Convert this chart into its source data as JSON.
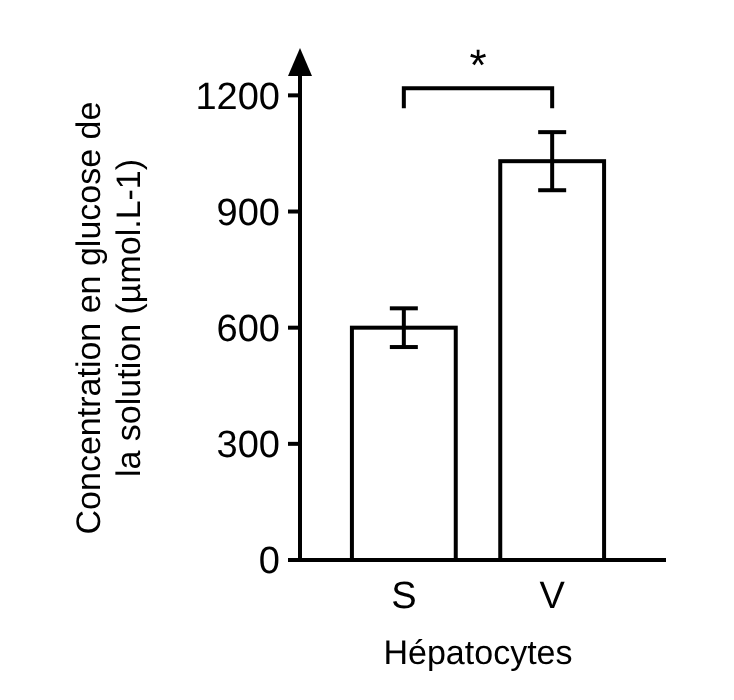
{
  "chart_data": {
    "type": "bar",
    "xlabel": "Hépatocytes",
    "ylabel": "Concentration en glucose de\nla solution (µmol.L-1)",
    "categories": [
      "S",
      "V"
    ],
    "values": [
      600,
      1030
    ],
    "errors": [
      50,
      75
    ],
    "color": "#ffffff",
    "ylim": [
      0,
      1250
    ],
    "yticks": [
      0,
      300,
      600,
      900,
      1200
    ],
    "grid": false,
    "annotations": [
      "*"
    ]
  }
}
